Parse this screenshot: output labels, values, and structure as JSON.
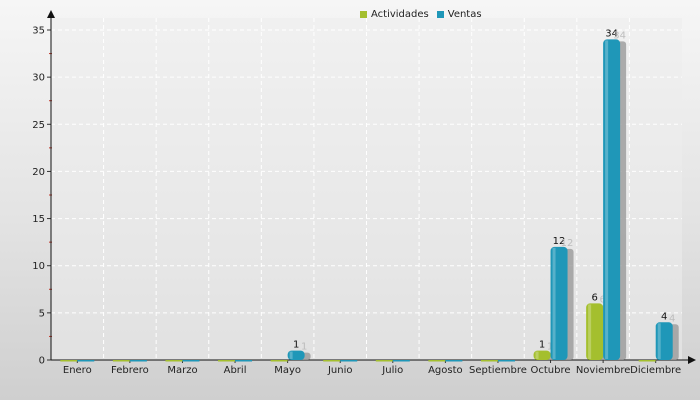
{
  "chart_data": {
    "type": "bar",
    "categories": [
      "Enero",
      "Febrero",
      "Marzo",
      "Abril",
      "Mayo",
      "Junio",
      "Julio",
      "Agosto",
      "Septiembre",
      "Octubre",
      "Noviembre",
      "Diciembre"
    ],
    "series": [
      {
        "name": "Actividades",
        "color": "#a4bf2e",
        "values": [
          0,
          0,
          0,
          0,
          0,
          0,
          0,
          0,
          0,
          1,
          6,
          0
        ]
      },
      {
        "name": "Ventas",
        "color": "#1f97b8",
        "values": [
          0,
          0,
          0,
          0,
          1,
          0,
          0,
          0,
          0,
          12,
          34,
          4
        ]
      }
    ],
    "ylim": [
      0,
      35
    ],
    "yticks": [
      0,
      5,
      10,
      15,
      20,
      25,
      30,
      35
    ],
    "grid": true,
    "legend_position": "top"
  }
}
